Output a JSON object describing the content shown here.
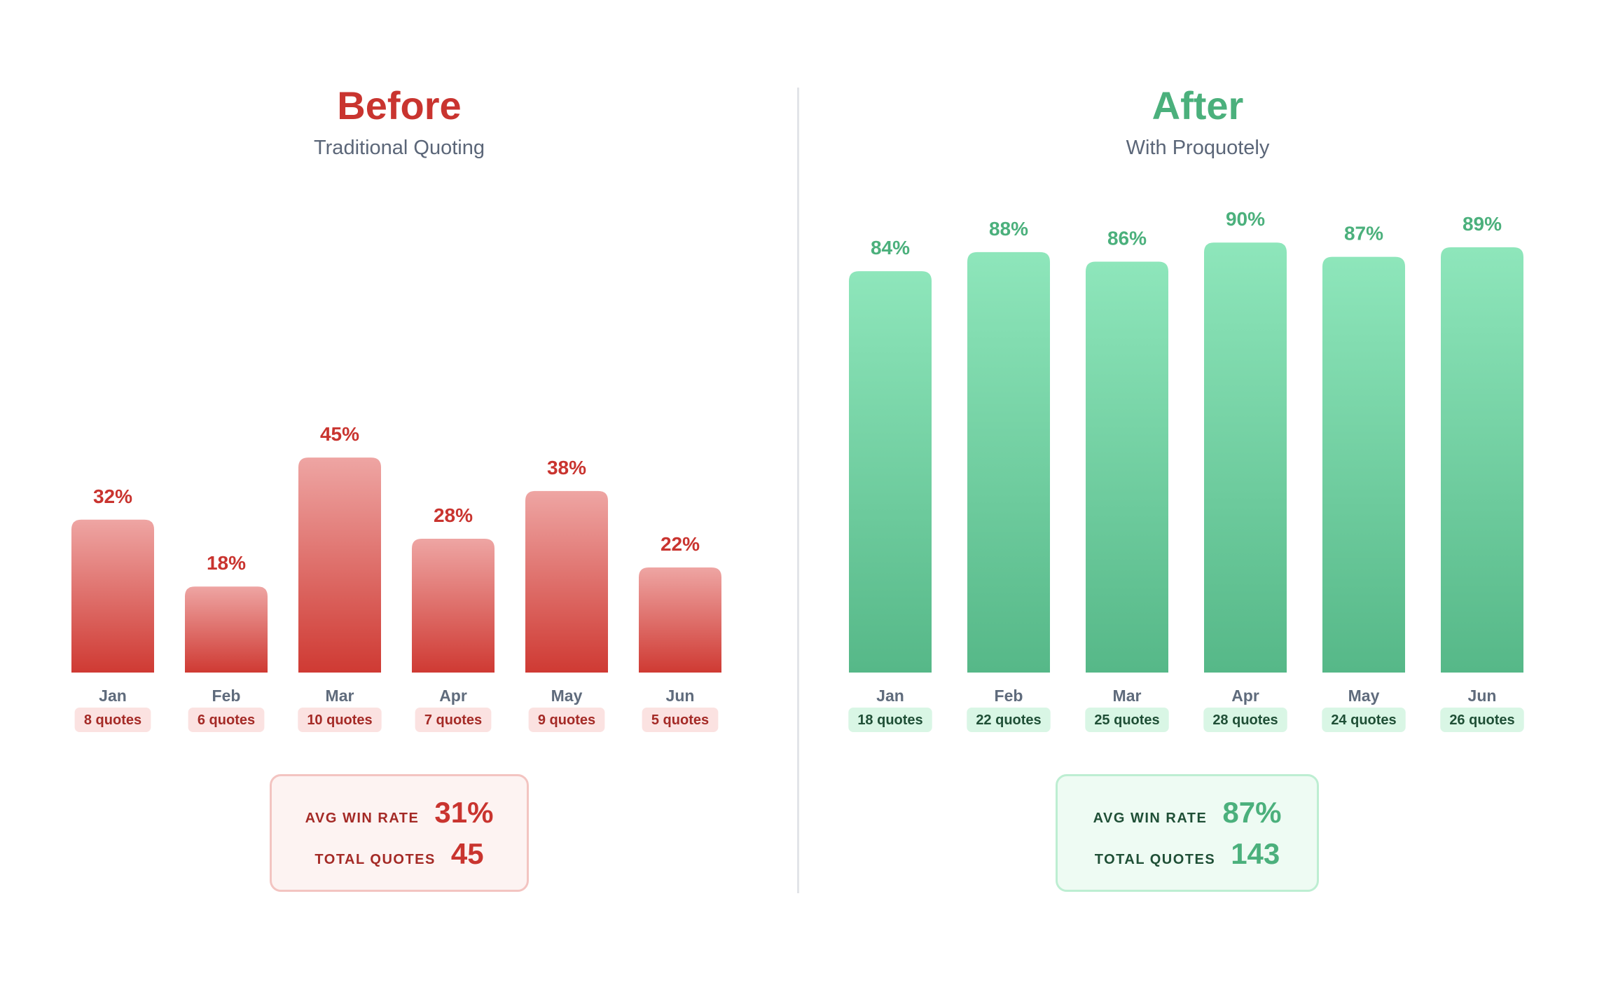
{
  "colors": {
    "before_accent": "#c9342f",
    "before_bar_top": "#eea5a3",
    "before_bar_bottom": "#cf3a33",
    "before_pill_bg": "#fbe2e1",
    "before_pill_text": "#a42a26",
    "before_box_bg": "#fdf3f2",
    "before_box_border": "#f3c4c1",
    "before_box_label": "#a42a26",
    "after_accent": "#4bb07c",
    "after_bar_top": "#8ee6bb",
    "after_bar_bottom": "#56b888",
    "after_pill_bg": "#d9f6e5",
    "after_pill_text": "#1f4f36",
    "after_box_bg": "#eefbf3",
    "after_box_border": "#bdeed2",
    "after_box_label": "#1f4f36"
  },
  "before": {
    "title": "Before",
    "subtitle": "Traditional Quoting",
    "stats": {
      "avg_win_rate_label": "AVG WIN RATE",
      "avg_win_rate_value": "31%",
      "total_quotes_label": "TOTAL QUOTES",
      "total_quotes_value": "45"
    }
  },
  "after": {
    "title": "After",
    "subtitle": "With Proquotely",
    "stats": {
      "avg_win_rate_label": "AVG WIN RATE",
      "avg_win_rate_value": "87%",
      "total_quotes_label": "TOTAL QUOTES",
      "total_quotes_value": "143"
    }
  },
  "chart_data": [
    {
      "type": "bar",
      "title": "Before",
      "subtitle": "Traditional Quoting",
      "categories": [
        "Jan",
        "Feb",
        "Mar",
        "Apr",
        "May",
        "Jun"
      ],
      "values": [
        32,
        18,
        45,
        28,
        38,
        22
      ],
      "value_labels": [
        "32%",
        "18%",
        "45%",
        "28%",
        "38%",
        "22%"
      ],
      "quote_labels": [
        "8 quotes",
        "6 quotes",
        "10 quotes",
        "7 quotes",
        "9 quotes",
        "5 quotes"
      ],
      "unit": "%",
      "ylim": [
        0,
        100
      ],
      "grid": false,
      "legend": "none"
    },
    {
      "type": "bar",
      "title": "After",
      "subtitle": "With Proquotely",
      "categories": [
        "Jan",
        "Feb",
        "Mar",
        "Apr",
        "May",
        "Jun"
      ],
      "values": [
        84,
        88,
        86,
        90,
        87,
        89
      ],
      "value_labels": [
        "84%",
        "88%",
        "86%",
        "90%",
        "87%",
        "89%"
      ],
      "quote_labels": [
        "18 quotes",
        "22 quotes",
        "25 quotes",
        "28 quotes",
        "24 quotes",
        "26 quotes"
      ],
      "unit": "%",
      "ylim": [
        0,
        100
      ],
      "grid": false,
      "legend": "none"
    }
  ]
}
